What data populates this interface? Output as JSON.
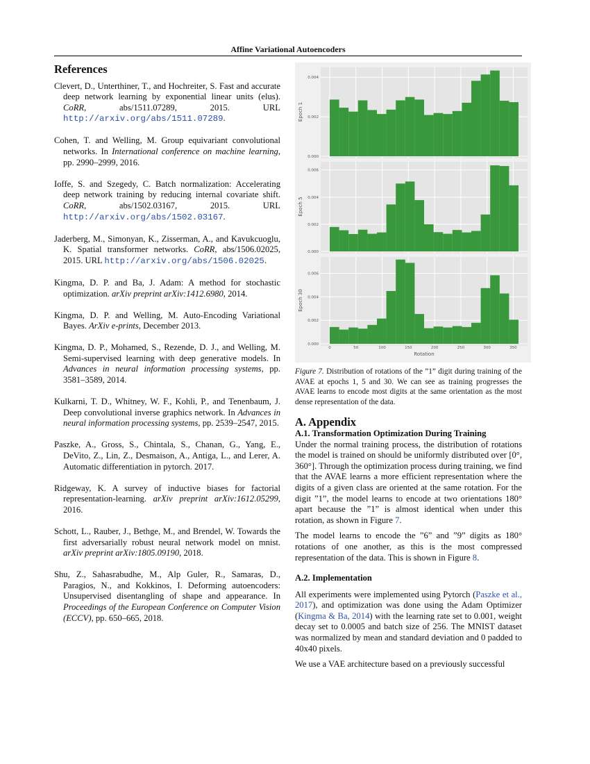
{
  "header": "Affine Variational Autoencoders",
  "references": {
    "title": "References",
    "items": [
      {
        "text": "Clevert, D., Unterthiner, T., and Hochreiter, S. Fast and accurate deep network learning by exponential linear units (elus). ",
        "venue": "CoRR",
        "rest": ", abs/1511.07289, 2015. URL ",
        "url": "http://arxiv.org/abs/1511.07289",
        "end": "."
      },
      {
        "text": "Cohen, T. and Welling, M. Group equivariant convolutional networks. In ",
        "venue": "International conference on machine learning",
        "rest": ", pp. 2990–2999, 2016.",
        "url": "",
        "end": ""
      },
      {
        "text": "Ioffe, S. and Szegedy, C. Batch normalization: Accelerating deep network training by reducing internal covariate shift. ",
        "venue": "CoRR",
        "rest": ", abs/1502.03167, 2015. URL ",
        "url": "http://arxiv.org/abs/1502.03167",
        "end": "."
      },
      {
        "text": "Jaderberg, M., Simonyan, K., Zisserman, A., and Kavukcuoglu, K. Spatial transformer networks. ",
        "venue": "CoRR",
        "rest": ", abs/1506.02025, 2015. URL ",
        "url": "http://arxiv.org/abs/1506.02025",
        "end": "."
      },
      {
        "text": "Kingma, D. P. and Ba, J. Adam: A method for stochastic optimization. ",
        "venue": "arXiv preprint arXiv:1412.6980",
        "rest": ", 2014.",
        "url": "",
        "end": ""
      },
      {
        "text": "Kingma, D. P. and Welling, M. Auto-Encoding Variational Bayes. ",
        "venue": "ArXiv e-prints",
        "rest": ", December 2013.",
        "url": "",
        "end": ""
      },
      {
        "text": "Kingma, D. P., Mohamed, S., Rezende, D. J., and Welling, M. Semi-supervised learning with deep generative models. In ",
        "venue": "Advances in neural information processing systems",
        "rest": ", pp. 3581–3589, 2014.",
        "url": "",
        "end": ""
      },
      {
        "text": "Kulkarni, T. D., Whitney, W. F., Kohli, P., and Tenenbaum, J. Deep convolutional inverse graphics network. In ",
        "venue": "Advances in neural information processing systems",
        "rest": ", pp. 2539–2547, 2015.",
        "url": "",
        "end": ""
      },
      {
        "text": "Paszke, A., Gross, S., Chintala, S., Chanan, G., Yang, E., DeVito, Z., Lin, Z., Desmaison, A., Antiga, L., and Lerer, A. Automatic differentiation in pytorch. 2017.",
        "venue": "",
        "rest": "",
        "url": "",
        "end": ""
      },
      {
        "text": "Ridgeway, K. A survey of inductive biases for factorial representation-learning. ",
        "venue": "arXiv preprint arXiv:1612.05299",
        "rest": ", 2016.",
        "url": "",
        "end": ""
      },
      {
        "text": "Schott, L., Rauber, J., Bethge, M., and Brendel, W. Towards the first adversarially robust neural network model on mnist. ",
        "venue": "arXiv preprint arXiv:1805.09190",
        "rest": ", 2018.",
        "url": "",
        "end": ""
      },
      {
        "text": "Shu, Z., Sahasrabudhe, M., Alp Guler, R., Samaras, D., Paragios, N., and Kokkinos, I. Deforming autoencoders: Unsupervised disentangling of shape and appearance. In ",
        "venue": "Proceedings of the European Conference on Computer Vision (ECCV)",
        "rest": ", pp. 650–665, 2018.",
        "url": "",
        "end": ""
      }
    ]
  },
  "chart_data": {
    "type": "bar",
    "xlabel": "Rotation",
    "x_ticks": [
      0,
      50,
      100,
      150,
      200,
      250,
      300,
      350
    ],
    "xlim": [
      0,
      360
    ],
    "bin_edges": [
      0,
      18,
      36,
      54,
      72,
      90,
      108,
      126,
      144,
      162,
      180,
      198,
      216,
      234,
      252,
      270,
      288,
      306,
      324,
      342,
      360
    ],
    "color": "#2e9431",
    "grid": true,
    "panels": [
      {
        "ylabel": "Epoch 1",
        "yticks": [
          "0.000",
          "0.002",
          "0.004"
        ],
        "ylim": [
          0,
          0.0045
        ],
        "values": [
          0.00287,
          0.00246,
          0.00226,
          0.00283,
          0.00234,
          0.00214,
          0.00236,
          0.00283,
          0.003,
          0.00287,
          0.00209,
          0.00219,
          0.00214,
          0.00229,
          0.00271,
          0.00382,
          0.00414,
          0.00434,
          0.00281,
          0.00274
        ]
      },
      {
        "ylabel": "Epoch 5",
        "yticks": [
          "0.000",
          "0.002",
          "0.004",
          "0.006"
        ],
        "ylim": [
          0,
          0.0066
        ],
        "values": [
          0.0018,
          0.00156,
          0.00128,
          0.0016,
          0.0013,
          0.0014,
          0.00346,
          0.005,
          0.00515,
          0.00378,
          0.002,
          0.00142,
          0.0013,
          0.00158,
          0.0014,
          0.00151,
          0.00272,
          0.00634,
          0.00629,
          0.00487
        ]
      },
      {
        "ylabel": "Epoch 30",
        "yticks": [
          "0.000",
          "0.002",
          "0.004",
          "0.006"
        ],
        "ylim": [
          0,
          0.0074
        ],
        "values": [
          0.00143,
          0.00121,
          0.00139,
          0.00129,
          0.00161,
          0.00215,
          0.0045,
          0.00718,
          0.0069,
          0.00254,
          0.00133,
          0.00147,
          0.00139,
          0.00151,
          0.00143,
          0.00179,
          0.00475,
          0.00584,
          0.00429,
          0.00205
        ]
      }
    ]
  },
  "caption": {
    "label": "Figure 7.",
    "text": " Distribution of rotations of the ”1” digit during training of the AVAE at epochs 1, 5 and 30. We can see as training progresses the AVAE learns to encode most digits at the same orientation as the most dense representation of the data."
  },
  "appendix": {
    "title": "A. Appendix",
    "s1_title": "A.1. Transformation Optimization During Training",
    "p1a": "Under the normal training process, the distribution of rotations the model is trained on should be uniformly distributed over [0°, 360°]. Through the optimization process during training, we find that the AVAE learns a more efficient representation where the digits of a given class are oriented at the same rotation. For the digit ”1”, the model learns to encode at two orientations 180° apart because the ”1” is almost identical when under this rotation, as shown in Figure ",
    "p1_ref": "7",
    "p2a": "The model learns to encode the ”6” and ”9” digits as 180° rotations of one another, as this is the most compressed representation of the data. This is shown in Figure ",
    "p2_ref": "8",
    "s2_title": "A.2. Implementation",
    "p3a": "All experiments were implemented using Pytorch (",
    "p3_ref1": "Paszke et al., 2017",
    "p3b": "), and optimization was done using the Adam Optimizer (",
    "p3_ref2": "Kingma & Ba, 2014",
    "p3c": ") with the learning rate set to 0.001, weight decay set to 0.0005 and batch size of 256. The MNIST dataset was normalized by mean and standard deviation and 0 padded to 40x40 pixels.",
    "p4": "We use a VAE architecture based on a previously successful"
  }
}
